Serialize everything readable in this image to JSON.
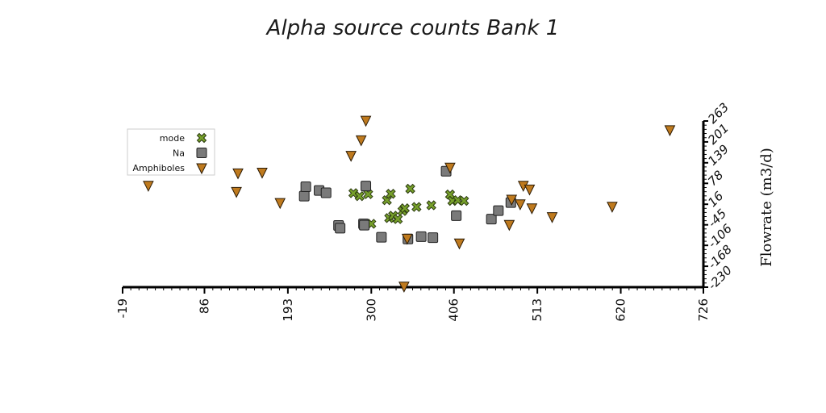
{
  "chart_data": {
    "type": "scatter",
    "title": "Alpha source counts Bank 1",
    "xlabel": "",
    "ylabel": "Flowrate (m3/d)",
    "xlim": [
      -19,
      726
    ],
    "ylim": [
      -230,
      263
    ],
    "x_ticks": [
      "-19",
      "86",
      "193",
      "300",
      "406",
      "513",
      "620",
      "726"
    ],
    "y_ticks": [
      "-230",
      "-168",
      "-106",
      "-45",
      "16",
      "78",
      "139",
      "201",
      "263"
    ],
    "y_axis_side": "right",
    "grid": false,
    "legend_position": "top-left",
    "series": [
      {
        "name": "mode",
        "marker": "x",
        "color": "#77a02b",
        "points": [
          [
            277,
            49
          ],
          [
            285,
            40
          ],
          [
            296,
            46
          ],
          [
            300,
            -42
          ],
          [
            320,
            28
          ],
          [
            323,
            -25
          ],
          [
            325,
            47
          ],
          [
            328,
            -18
          ],
          [
            334,
            -28
          ],
          [
            340,
            -4
          ],
          [
            343,
            4
          ],
          [
            350,
            62
          ],
          [
            358,
            8
          ],
          [
            377,
            13
          ],
          [
            401,
            45
          ],
          [
            404,
            26
          ],
          [
            411,
            28
          ],
          [
            419,
            26
          ]
        ]
      },
      {
        "name": "Na",
        "marker": "square",
        "color": "#7a7a7a",
        "points": [
          [
            214,
            40
          ],
          [
            216,
            68
          ],
          [
            233,
            57
          ],
          [
            242,
            50
          ],
          [
            258,
            -47
          ],
          [
            260,
            -55
          ],
          [
            290,
            -42
          ],
          [
            291,
            -46
          ],
          [
            293,
            70
          ],
          [
            313,
            -82
          ],
          [
            347,
            -87
          ],
          [
            364,
            -80
          ],
          [
            379,
            -83
          ],
          [
            396,
            114
          ],
          [
            409,
            -18
          ],
          [
            454,
            -28
          ],
          [
            463,
            -3
          ],
          [
            479,
            21
          ]
        ]
      },
      {
        "name": "Amphiboles",
        "marker": "triangle-down",
        "color": "#bf7a1e",
        "points": [
          [
            14,
            72
          ],
          [
            127,
            54
          ],
          [
            129,
            109
          ],
          [
            160,
            111
          ],
          [
            183,
            21
          ],
          [
            274,
            161
          ],
          [
            287,
            207
          ],
          [
            293,
            265
          ],
          [
            342,
            -227
          ],
          [
            346,
            -85
          ],
          [
            401,
            126
          ],
          [
            413,
            -99
          ],
          [
            477,
            -44
          ],
          [
            480,
            31
          ],
          [
            491,
            17
          ],
          [
            495,
            72
          ],
          [
            503,
            61
          ],
          [
            506,
            5
          ],
          [
            532,
            -21
          ],
          [
            609,
            10
          ],
          [
            683,
            237
          ]
        ]
      }
    ]
  }
}
